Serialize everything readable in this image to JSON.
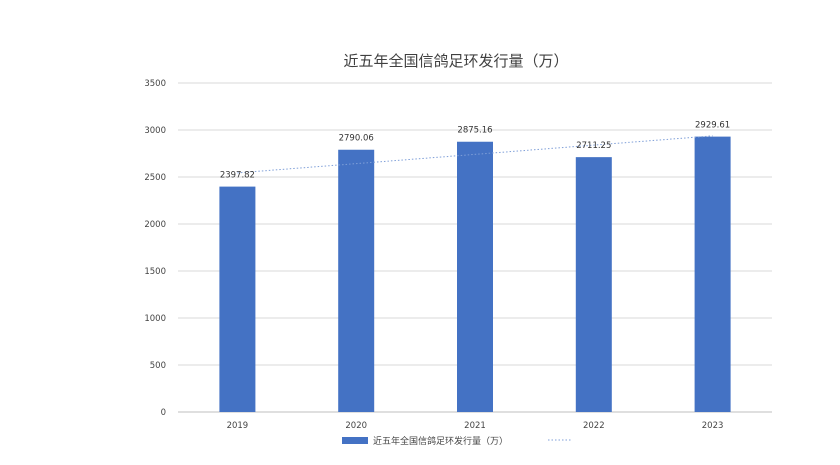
{
  "chart_data": {
    "type": "bar",
    "title": "近五年全国信鸽足环发行量（万）",
    "categories": [
      "2019",
      "2020",
      "2021",
      "2022",
      "2023"
    ],
    "series": [
      {
        "name": "近五年全国信鸽足环发行量（万）",
        "values": [
          2397.82,
          2790.06,
          2875.16,
          2711.25,
          2929.61
        ]
      }
    ],
    "data_labels": [
      "2397.82",
      "2790.06",
      "2875.16",
      "2711.25",
      "2929.61"
    ],
    "trendline": {
      "style": "dotted",
      "type": "linear"
    },
    "ylim": [
      0,
      3500
    ],
    "yticks": [
      "0",
      "500",
      "1000",
      "1500",
      "2000",
      "2500",
      "3000",
      "3500"
    ],
    "grid": true,
    "legend_position": "bottom",
    "colors": {
      "bar": "#4472C4",
      "trendline": "#7F9FD8",
      "grid": "#D9D9D9",
      "axis": "#BFBFBF"
    }
  }
}
